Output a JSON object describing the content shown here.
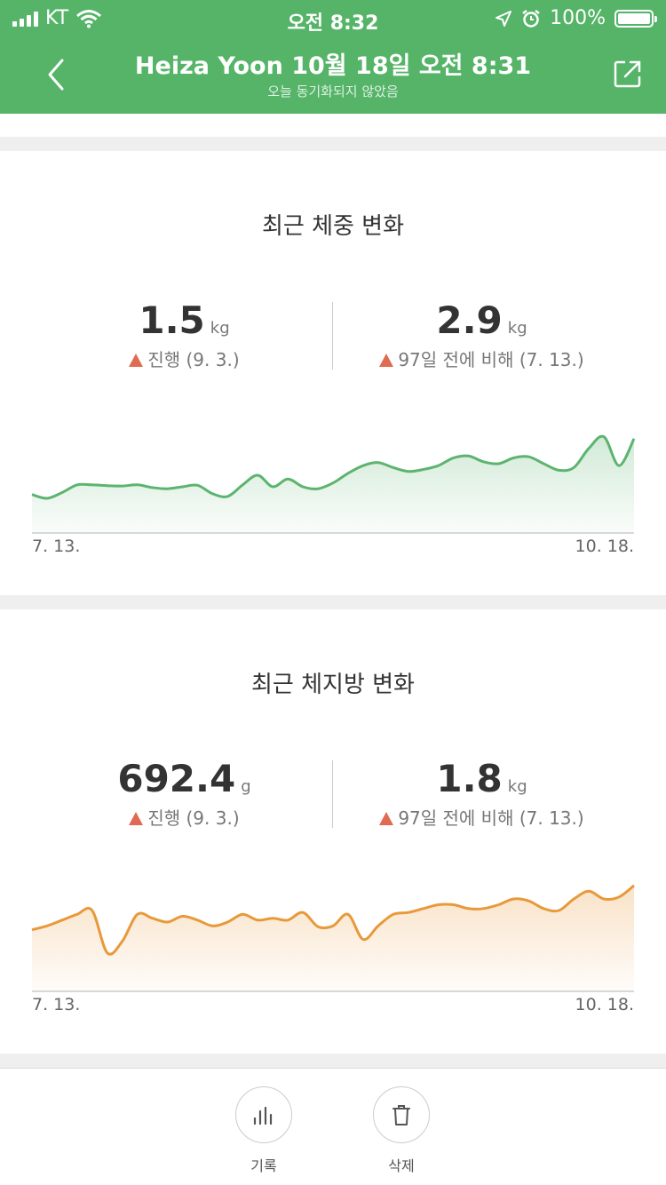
{
  "status_bar": {
    "carrier": "KT",
    "time": "오전 8:32",
    "battery": "100%"
  },
  "header": {
    "title": "Heiza Yoon 10월 18일 오전 8:31",
    "subtitle": "오늘 동기화되지 않았음"
  },
  "weight_card": {
    "title": "최근 체중 변화",
    "stat_left": {
      "value": "1.5",
      "unit": "kg",
      "caption": "진행 (9. 3.)"
    },
    "stat_right": {
      "value": "2.9",
      "unit": "kg",
      "caption": "97일 전에 비해 (7. 13.)"
    }
  },
  "fat_card": {
    "title": "최근 체지방 변화",
    "stat_left": {
      "value": "692.4",
      "unit": "g",
      "caption": "진행 (9. 3.)"
    },
    "stat_right": {
      "value": "1.8",
      "unit": "kg",
      "caption": "97일 전에 비해 (7. 13.)"
    }
  },
  "toolbar": {
    "history_label": "기록",
    "delete_label": "삭제"
  },
  "colors": {
    "header": "#55b468",
    "weight_line": "#5cb46f",
    "fat_line": "#e8993a",
    "increase_marker": "#e06b52"
  },
  "chart_data": [
    {
      "type": "area",
      "xlabel": "",
      "ylabel": "",
      "x_start": "7. 13.",
      "x_end": "10. 18.",
      "values": [
        10,
        9,
        10.5,
        12.5,
        12.5,
        12.3,
        12.2,
        12.5,
        11.8,
        11.5,
        12,
        12.4,
        10.2,
        9.5,
        12.5,
        15,
        12,
        14,
        12,
        11.5,
        13,
        15.5,
        17.5,
        18.3,
        17,
        16,
        16.5,
        17.5,
        19.5,
        20,
        18.5,
        18,
        19.5,
        19.8,
        18,
        16.3,
        17,
        22,
        25,
        17.5,
        24.5
      ]
    },
    {
      "type": "area",
      "xlabel": "",
      "ylabel": "",
      "x_start": "7. 13.",
      "x_end": "10. 18.",
      "values": [
        16,
        17,
        18.5,
        20,
        21,
        10,
        13,
        20,
        19,
        18,
        19.5,
        18.5,
        17,
        18,
        20,
        18.5,
        19,
        18.5,
        20.5,
        16.8,
        17,
        20,
        13.5,
        17,
        20,
        20.5,
        21.5,
        22.5,
        22.5,
        21.5,
        21.5,
        22.5,
        24,
        23.5,
        21.5,
        21,
        24,
        26,
        24,
        24.5,
        27.5
      ]
    }
  ]
}
